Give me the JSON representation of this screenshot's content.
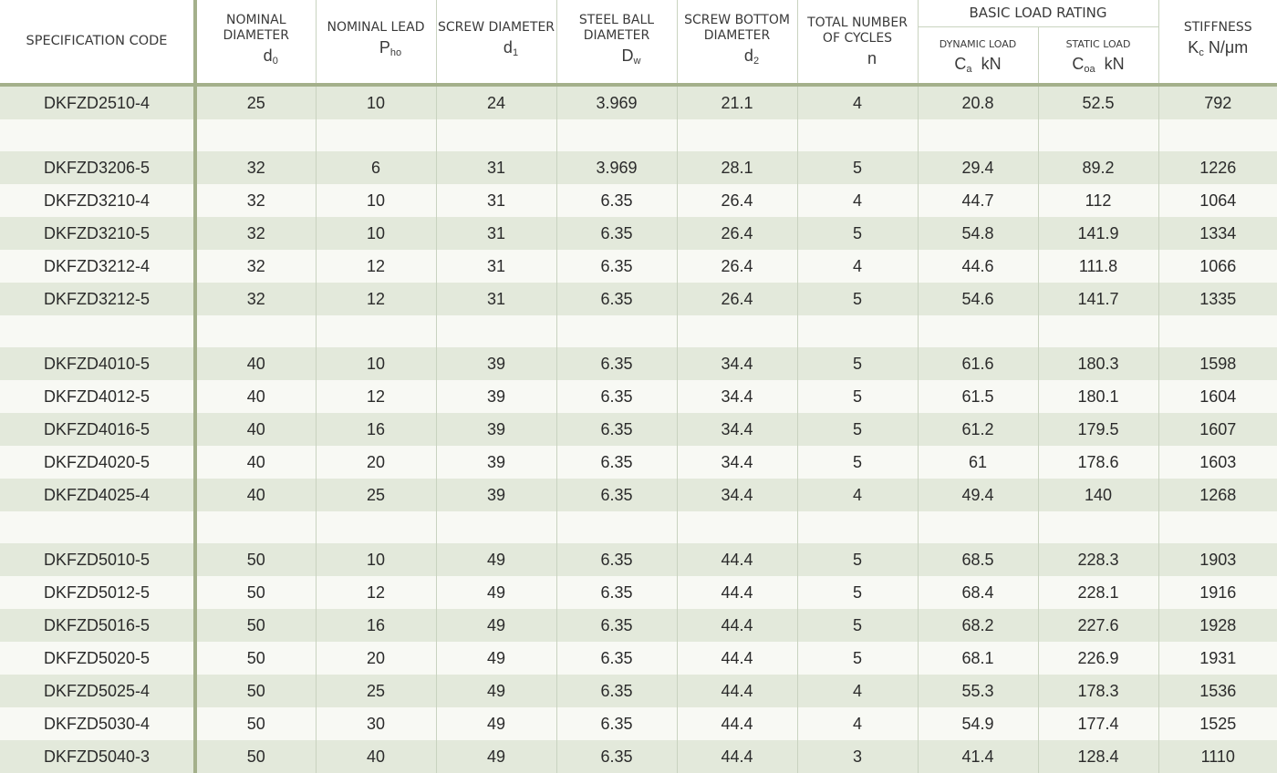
{
  "header": {
    "spec_code": "SPECIFICATION CODE",
    "nominal_diameter": "NOMINAL DIAMETER",
    "nominal_diameter_sym": "d",
    "nominal_diameter_sub": "0",
    "nominal_lead": "NOMINAL LEAD",
    "nominal_lead_sym": "P",
    "nominal_lead_sub": "ho",
    "screw_diameter": "SCREW DIAMETER",
    "screw_diameter_sym": "d",
    "screw_diameter_sub": "1",
    "ball_diameter": "STEEL BALL DIAMETER",
    "ball_diameter_sym": "D",
    "ball_diameter_sub": "w",
    "bottom_diameter": "SCREW BOTTOM DIAMETER",
    "bottom_diameter_sym": "d",
    "bottom_diameter_sub": "2",
    "cycles": "TOTAL NUMBER OF CYCLES",
    "cycles_sym": "n",
    "load_rating": "BASIC LOAD RATING",
    "dynamic_load": "DYNAMIC LOAD",
    "dynamic_sym": "C",
    "dynamic_sub": "a",
    "dynamic_unit": "kN",
    "static_load": "STATIC LOAD",
    "static_sym": "C",
    "static_sub": "oa",
    "static_unit": "kN",
    "stiffness": "STIFFNESS",
    "stiffness_sym": "K",
    "stiffness_sub": "c",
    "stiffness_unit": "N/μm"
  },
  "rows": [
    [
      "DKFZD2510-4",
      "25",
      "10",
      "24",
      "3.969",
      "21.1",
      "4",
      "20.8",
      "52.5",
      "792"
    ],
    null,
    [
      "DKFZD3206-5",
      "32",
      "6",
      "31",
      "3.969",
      "28.1",
      "5",
      "29.4",
      "89.2",
      "1226"
    ],
    [
      "DKFZD3210-4",
      "32",
      "10",
      "31",
      "6.35",
      "26.4",
      "4",
      "44.7",
      "112",
      "1064"
    ],
    [
      "DKFZD3210-5",
      "32",
      "10",
      "31",
      "6.35",
      "26.4",
      "5",
      "54.8",
      "141.9",
      "1334"
    ],
    [
      "DKFZD3212-4",
      "32",
      "12",
      "31",
      "6.35",
      "26.4",
      "4",
      "44.6",
      "111.8",
      "1066"
    ],
    [
      "DKFZD3212-5",
      "32",
      "12",
      "31",
      "6.35",
      "26.4",
      "5",
      "54.6",
      "141.7",
      "1335"
    ],
    null,
    [
      "DKFZD4010-5",
      "40",
      "10",
      "39",
      "6.35",
      "34.4",
      "5",
      "61.6",
      "180.3",
      "1598"
    ],
    [
      "DKFZD4012-5",
      "40",
      "12",
      "39",
      "6.35",
      "34.4",
      "5",
      "61.5",
      "180.1",
      "1604"
    ],
    [
      "DKFZD4016-5",
      "40",
      "16",
      "39",
      "6.35",
      "34.4",
      "5",
      "61.2",
      "179.5",
      "1607"
    ],
    [
      "DKFZD4020-5",
      "40",
      "20",
      "39",
      "6.35",
      "34.4",
      "5",
      "61",
      "178.6",
      "1603"
    ],
    [
      "DKFZD4025-4",
      "40",
      "25",
      "39",
      "6.35",
      "34.4",
      "4",
      "49.4",
      "140",
      "1268"
    ],
    null,
    [
      "DKFZD5010-5",
      "50",
      "10",
      "49",
      "6.35",
      "44.4",
      "5",
      "68.5",
      "228.3",
      "1903"
    ],
    [
      "DKFZD5012-5",
      "50",
      "12",
      "49",
      "6.35",
      "44.4",
      "5",
      "68.4",
      "228.1",
      "1916"
    ],
    [
      "DKFZD5016-5",
      "50",
      "16",
      "49",
      "6.35",
      "44.4",
      "5",
      "68.2",
      "227.6",
      "1928"
    ],
    [
      "DKFZD5020-5",
      "50",
      "20",
      "49",
      "6.35",
      "44.4",
      "5",
      "68.1",
      "226.9",
      "1931"
    ],
    [
      "DKFZD5025-4",
      "50",
      "25",
      "49",
      "6.35",
      "44.4",
      "4",
      "55.3",
      "178.3",
      "1536"
    ],
    [
      "DKFZD5030-4",
      "50",
      "30",
      "49",
      "6.35",
      "44.4",
      "4",
      "54.9",
      "177.4",
      "1525"
    ],
    [
      "DKFZD5040-3",
      "50",
      "40",
      "49",
      "6.35",
      "44.4",
      "3",
      "41.4",
      "128.4",
      "1110"
    ]
  ]
}
